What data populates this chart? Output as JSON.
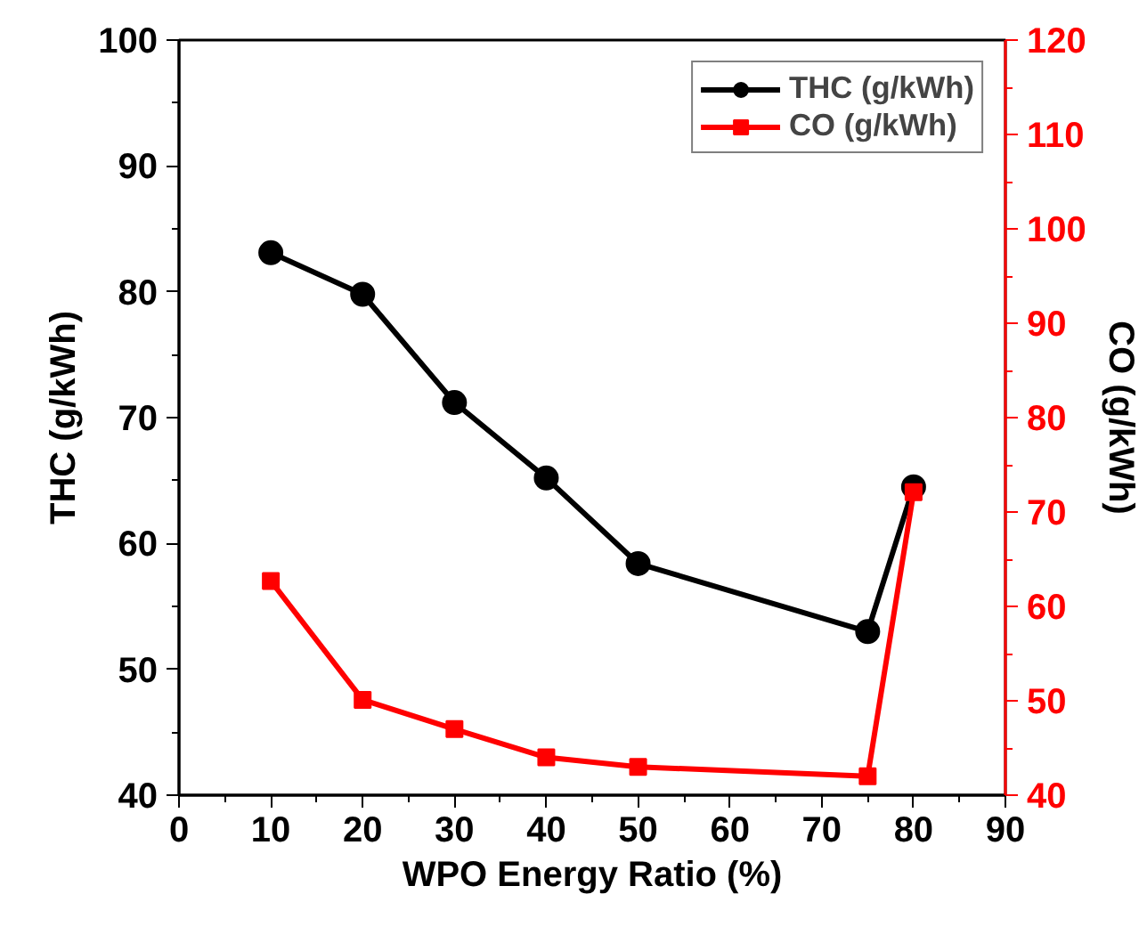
{
  "chart_data": {
    "type": "line",
    "xlabel": "WPO Energy Ratio (%)",
    "ylabel": "THC (g/kWh)",
    "y2label": "CO (g/kWh)",
    "x": [
      10,
      20,
      30,
      40,
      50,
      75,
      80
    ],
    "series": [
      {
        "name": "THC (g/kWh)",
        "color": "#000000",
        "marker": "circle",
        "values": [
          83.1,
          79.8,
          71.2,
          65.2,
          58.4,
          53.0,
          64.5
        ]
      },
      {
        "name": "CO (g/kWh)",
        "color": "#ff0000",
        "marker": "square",
        "axis": "y2",
        "values": [
          62.7,
          50.1,
          47.0,
          44.0,
          43.0,
          42.0,
          72.1
        ]
      }
    ],
    "xlim": [
      0,
      90
    ],
    "xticks": [
      0,
      10,
      20,
      30,
      40,
      50,
      60,
      70,
      80,
      90
    ],
    "ylim": [
      40,
      100
    ],
    "yticks": [
      40,
      50,
      60,
      70,
      80,
      90,
      100
    ],
    "y2lim": [
      40,
      120
    ],
    "y2ticks": [
      40,
      50,
      60,
      70,
      80,
      90,
      100,
      110,
      120
    ],
    "grid": false,
    "legend": "top right",
    "line_style": "solid"
  }
}
